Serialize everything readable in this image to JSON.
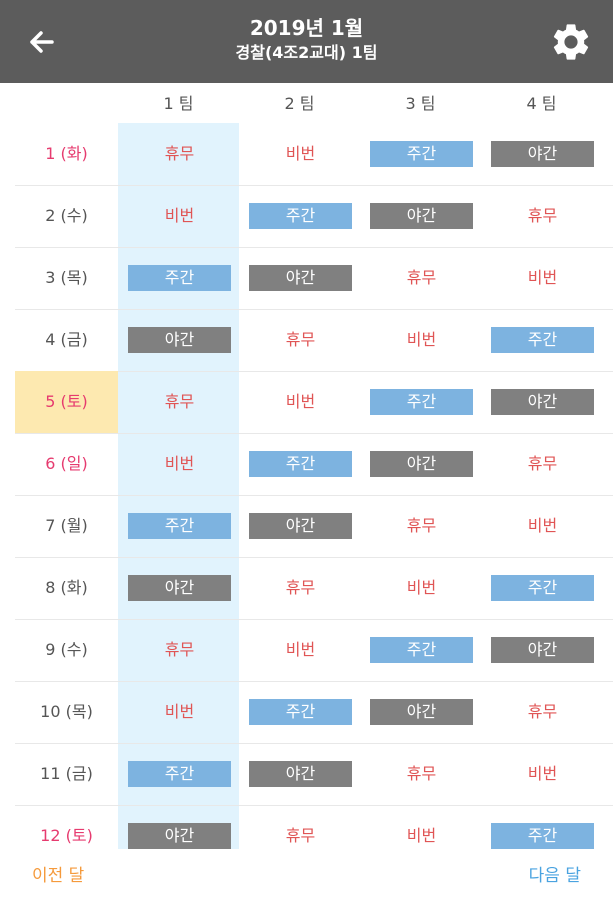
{
  "header": {
    "title": "2019년 1월",
    "subtitle": "경찰(4조2교대) 1팀",
    "back_icon": "arrow-left-icon",
    "settings_icon": "gear-icon"
  },
  "teams": [
    "1 팀",
    "2 팀",
    "3 팀",
    "4 팀"
  ],
  "rows": [
    {
      "date": "1 (화)",
      "holiday": true,
      "shifts": [
        "휴무",
        "비번",
        "주간",
        "야간"
      ]
    },
    {
      "date": "2 (수)",
      "holiday": false,
      "shifts": [
        "비번",
        "주간",
        "야간",
        "휴무"
      ]
    },
    {
      "date": "3 (목)",
      "holiday": false,
      "shifts": [
        "주간",
        "야간",
        "휴무",
        "비번"
      ]
    },
    {
      "date": "4 (금)",
      "holiday": false,
      "shifts": [
        "야간",
        "휴무",
        "비번",
        "주간"
      ]
    },
    {
      "date": "5 (토)",
      "holiday": true,
      "today": true,
      "shifts": [
        "휴무",
        "비번",
        "주간",
        "야간"
      ]
    },
    {
      "date": "6 (일)",
      "holiday": true,
      "shifts": [
        "비번",
        "주간",
        "야간",
        "휴무"
      ]
    },
    {
      "date": "7 (월)",
      "holiday": false,
      "shifts": [
        "주간",
        "야간",
        "휴무",
        "비번"
      ]
    },
    {
      "date": "8 (화)",
      "holiday": false,
      "shifts": [
        "야간",
        "휴무",
        "비번",
        "주간"
      ]
    },
    {
      "date": "9 (수)",
      "holiday": false,
      "shifts": [
        "휴무",
        "비번",
        "주간",
        "야간"
      ]
    },
    {
      "date": "10 (목)",
      "holiday": false,
      "shifts": [
        "비번",
        "주간",
        "야간",
        "휴무"
      ]
    },
    {
      "date": "11 (금)",
      "holiday": false,
      "shifts": [
        "주간",
        "야간",
        "휴무",
        "비번"
      ]
    },
    {
      "date": "12 (토)",
      "holiday": true,
      "shifts": [
        "야간",
        "휴무",
        "비번",
        "주간"
      ]
    }
  ],
  "footer": {
    "prev_label": "이전 달",
    "next_label": "다음 달"
  },
  "colors": {
    "appbar": "#5c5c5c",
    "day_shift": "#7db3e0",
    "night_shift": "#808080",
    "off_text": "#e05555",
    "holiday_date": "#e63b6f",
    "today_bg": "#fde9b0",
    "selected_team_bg": "#e1f3fd",
    "prev": "#f59a3c",
    "next": "#4aa3e0"
  }
}
